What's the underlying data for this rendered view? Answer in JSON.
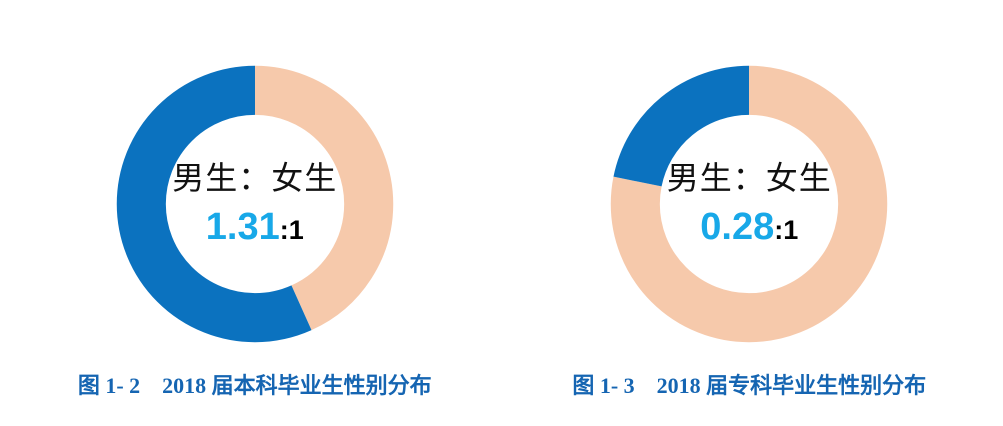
{
  "page": {
    "background_color": "#ffffff"
  },
  "colors": {
    "male_slice": "#0B72BF",
    "female_slice": "#F6C9AB",
    "ratio_value_text": "#18A8E8",
    "ratio_suffix_text": "#000000",
    "center_label_text": "#111111",
    "caption_text": "#1565B2"
  },
  "chart_data": [
    {
      "type": "pie",
      "subtype": "donut",
      "caption": "图 1- 2　2018 届本科毕业生性别分布",
      "center_label": "男生：女生",
      "center_value": "1.31",
      "center_value_suffix": ":1",
      "male_to_female_ratio": "1.31:1",
      "layout": {
        "start_position": "12-oclock",
        "direction": "clockwise",
        "inner_radius_frac": 0.645
      },
      "slices": [
        {
          "label": "女生",
          "value": 1.0,
          "color": "#F6C9AB",
          "start_deg": 0,
          "end_deg": 155.8
        },
        {
          "label": "男生",
          "value": 1.31,
          "color": "#0B72BF",
          "start_deg": 155.8,
          "end_deg": 360
        }
      ]
    },
    {
      "type": "pie",
      "subtype": "donut",
      "caption": "图 1- 3　2018 届专科毕业生性别分布",
      "center_label": "男生：女生",
      "center_value": "0.28",
      "center_value_suffix": ":1",
      "male_to_female_ratio": "0.28:1",
      "layout": {
        "start_position": "12-oclock",
        "direction": "clockwise",
        "inner_radius_frac": 0.645
      },
      "slices": [
        {
          "label": "女生",
          "value": 1.0,
          "color": "#F6C9AB",
          "start_deg": 0,
          "end_deg": 281.3
        },
        {
          "label": "男生",
          "value": 0.28,
          "color": "#0B72BF",
          "start_deg": 281.3,
          "end_deg": 360
        }
      ]
    }
  ]
}
